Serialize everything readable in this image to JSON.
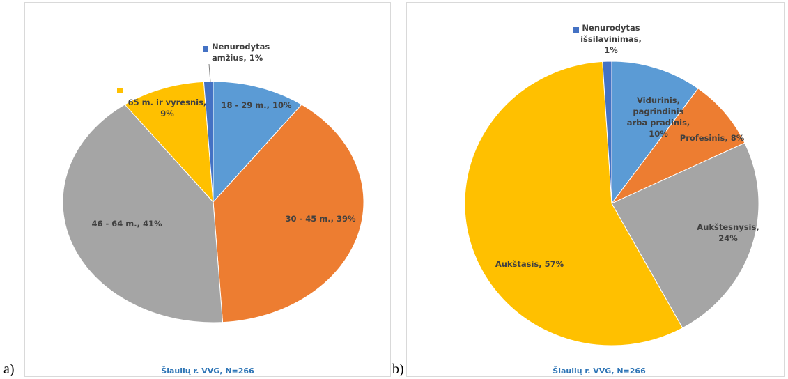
{
  "chart_data": [
    {
      "type": "pie",
      "panel_label": "a)",
      "footer": "Šiaulių r. VVG, N=266",
      "values": [
        10,
        39,
        41,
        9,
        1
      ],
      "value_labels": [
        "18 - 29 m., 10%",
        "30 - 45 m., 39%",
        "46 - 64 m., 41%",
        "65 m. ir vyresnis,\n9%",
        "Nenurodytas\namžius, 1%"
      ],
      "colors": [
        "#5b9bd5",
        "#ed7d31",
        "#a5a5a5",
        "#ffc000",
        "#4472c4"
      ]
    },
    {
      "type": "pie",
      "panel_label": "b)",
      "footer": "Šiaulių r. VVG, N=266",
      "values": [
        10,
        8,
        24,
        57,
        1
      ],
      "value_labels": [
        "Vidurinis,\npagrindinis\narba pradinis,\n10%",
        "Profesinis, 8%",
        "Aukštesnysis,\n24%",
        "Aukštasis, 57%",
        "Nenurodytas\nišsilavinimas,\n1%"
      ],
      "colors": [
        "#5b9bd5",
        "#ed7d31",
        "#a5a5a5",
        "#ffc000",
        "#4472c4"
      ]
    }
  ]
}
